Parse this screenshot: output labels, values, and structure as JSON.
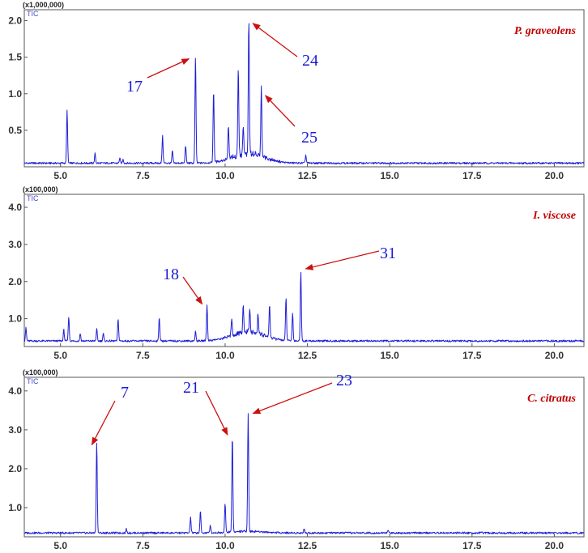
{
  "colors": {
    "trace": "#1f1fd6",
    "arrow": "#cc1010",
    "species": "#c00000",
    "peak_label": "#1a1ad6",
    "frame": "#555555"
  },
  "chart_data": [
    {
      "type": "line",
      "title": "P. graveolens",
      "scale_label": "(x1,000,000)",
      "trace_label": "TIC",
      "xlim": [
        3.9,
        20.9
      ],
      "ylim": [
        0,
        2.15
      ],
      "x_ticks": [
        5.0,
        7.5,
        10.0,
        12.5,
        15.0,
        17.5,
        20.0
      ],
      "x_tick_labels": [
        "5.0",
        "7.5",
        "10.0",
        "12.5",
        "15.0",
        "17.5",
        "20.0"
      ],
      "y_ticks": [
        0.5,
        1.0,
        1.5,
        2.0
      ],
      "y_tick_labels": [
        "0.5",
        "1.0",
        "1.5",
        "2.0"
      ],
      "baseline": 0.05,
      "peaks": [
        {
          "rt": 5.2,
          "height": 0.77
        },
        {
          "rt": 6.05,
          "height": 0.18
        },
        {
          "rt": 6.8,
          "height": 0.12
        },
        {
          "rt": 6.9,
          "height": 0.1
        },
        {
          "rt": 8.1,
          "height": 0.42
        },
        {
          "rt": 8.4,
          "height": 0.22
        },
        {
          "rt": 8.8,
          "height": 0.3
        },
        {
          "rt": 9.1,
          "height": 1.5
        },
        {
          "rt": 9.65,
          "height": 1.05
        },
        {
          "rt": 10.1,
          "height": 0.5
        },
        {
          "rt": 10.4,
          "height": 1.25
        },
        {
          "rt": 10.55,
          "height": 0.45
        },
        {
          "rt": 10.72,
          "height": 1.93
        },
        {
          "rt": 11.1,
          "height": 1.02
        },
        {
          "rt": 12.45,
          "height": 0.16
        }
      ],
      "annotations": [
        {
          "label": "17",
          "peak_rt": 9.1
        },
        {
          "label": "24",
          "peak_rt": 10.72
        },
        {
          "label": "25",
          "peak_rt": 11.1
        }
      ]
    },
    {
      "type": "line",
      "title": "I. viscose",
      "scale_label": "(x100,000)",
      "trace_label": "TIC",
      "xlim": [
        3.9,
        20.9
      ],
      "ylim": [
        0.25,
        4.35
      ],
      "x_ticks": [
        5.0,
        7.5,
        10.0,
        12.5,
        15.0,
        17.5,
        20.0
      ],
      "x_tick_labels": [
        "5.0",
        "7.5",
        "10.0",
        "12.5",
        "15.0",
        "17.5",
        "20.0"
      ],
      "y_ticks": [
        1.0,
        2.0,
        3.0,
        4.0
      ],
      "y_tick_labels": [
        "1.0",
        "2.0",
        "3.0",
        "4.0"
      ],
      "baseline": 0.4,
      "peaks": [
        {
          "rt": 3.95,
          "height": 0.75
        },
        {
          "rt": 5.1,
          "height": 0.7
        },
        {
          "rt": 5.25,
          "height": 1.05
        },
        {
          "rt": 5.6,
          "height": 0.6
        },
        {
          "rt": 6.1,
          "height": 0.72
        },
        {
          "rt": 6.3,
          "height": 0.6
        },
        {
          "rt": 6.75,
          "height": 1.0
        },
        {
          "rt": 8.0,
          "height": 1.05
        },
        {
          "rt": 9.1,
          "height": 0.65
        },
        {
          "rt": 9.45,
          "height": 1.35
        },
        {
          "rt": 10.2,
          "height": 0.9
        },
        {
          "rt": 10.55,
          "height": 1.15
        },
        {
          "rt": 10.75,
          "height": 1.0
        },
        {
          "rt": 11.0,
          "height": 0.95
        },
        {
          "rt": 11.35,
          "height": 1.25
        },
        {
          "rt": 11.85,
          "height": 1.55
        },
        {
          "rt": 12.05,
          "height": 1.15
        },
        {
          "rt": 12.3,
          "height": 2.3
        }
      ],
      "annotations": [
        {
          "label": "18",
          "peak_rt": 9.45
        },
        {
          "label": "31",
          "peak_rt": 12.3
        }
      ]
    },
    {
      "type": "line",
      "title": "C. citratus",
      "scale_label": "(x100,000)",
      "trace_label": "TIC",
      "xlim": [
        3.9,
        20.9
      ],
      "ylim": [
        0.25,
        4.35
      ],
      "x_ticks": [
        5.0,
        7.5,
        10.0,
        12.5,
        15.0,
        17.5,
        20.0
      ],
      "x_tick_labels": [
        "5.0",
        "7.5",
        "10.0",
        "12.5",
        "15.0",
        "17.5",
        "20.0"
      ],
      "y_ticks": [
        1.0,
        2.0,
        3.0,
        4.0
      ],
      "y_tick_labels": [
        "1.0",
        "2.0",
        "3.0",
        "4.0"
      ],
      "baseline": 0.35,
      "peaks": [
        {
          "rt": 6.1,
          "height": 2.7
        },
        {
          "rt": 7.0,
          "height": 0.45
        },
        {
          "rt": 8.95,
          "height": 0.75
        },
        {
          "rt": 9.25,
          "height": 0.9
        },
        {
          "rt": 9.55,
          "height": 0.55
        },
        {
          "rt": 10.0,
          "height": 1.1
        },
        {
          "rt": 10.22,
          "height": 2.85
        },
        {
          "rt": 10.7,
          "height": 3.4
        },
        {
          "rt": 12.4,
          "height": 0.45
        },
        {
          "rt": 14.95,
          "height": 0.42
        }
      ],
      "annotations": [
        {
          "label": "7",
          "peak_rt": 6.1
        },
        {
          "label": "21",
          "peak_rt": 10.22
        },
        {
          "label": "23",
          "peak_rt": 10.7
        }
      ]
    }
  ]
}
